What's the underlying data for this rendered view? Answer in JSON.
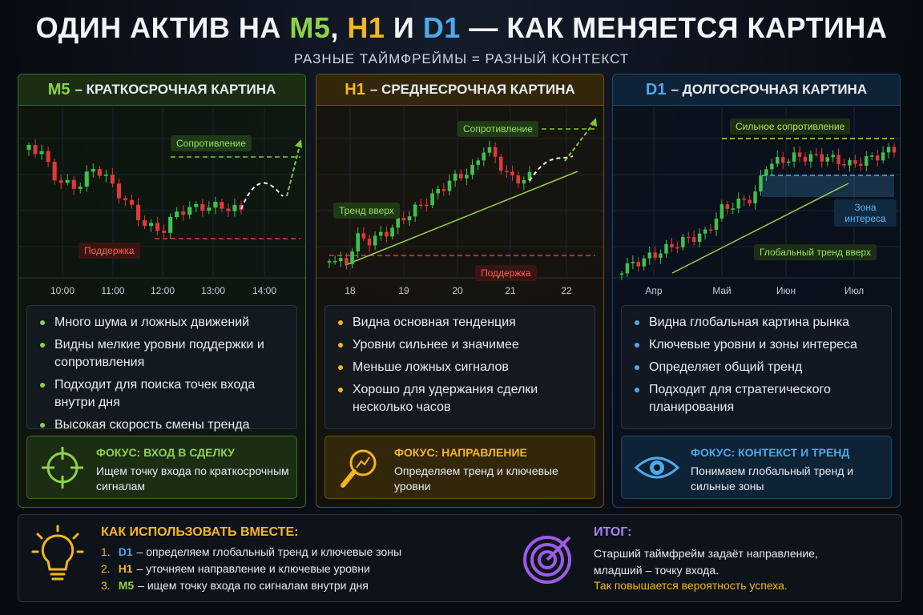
{
  "header": {
    "title_parts": [
      "ОДИН АКТИВ НА ",
      "M5",
      ", ",
      "H1",
      " И ",
      "D1",
      " — КАК МЕНЯЕТСЯ КАРТИНА"
    ],
    "subtitle": "РАЗНЫЕ ТАЙМФРЕЙМЫ = РАЗНЫЙ КОНТЕКСТ"
  },
  "panels": [
    {
      "tf": "M5",
      "heading": "– КРАТКОСРОЧНАЯ КАРТИНА",
      "annotations": [
        "Сопротивление",
        "Поддержка"
      ],
      "x_labels": [
        "10:00",
        "11:00",
        "12:00",
        "13:00",
        "14:00"
      ],
      "bullets": [
        "Много шума и ложных движений",
        "Видны мелкие уровни поддержки и сопротивления",
        "Подходит для поиска точек входа внутри дня",
        "Высокая скорость смены тренда"
      ],
      "focus_title": "ФОКУС: ВХОД В СДЕЛКУ",
      "focus_text": "Ищем точку входа по краткосрочным сигналам"
    },
    {
      "tf": "H1",
      "heading": "– СРЕДНЕСРОЧНАЯ КАРТИНА",
      "annotations": [
        "Сопротивление",
        "Тренд вверх",
        "Поддержка"
      ],
      "x_labels": [
        "18",
        "19",
        "20",
        "21",
        "22"
      ],
      "bullets": [
        "Видна основная тенденция",
        "Уровни сильнее и значимее",
        "Меньше ложных сигналов",
        "Хорошо для удержания сделки несколько часов"
      ],
      "focus_title": "ФОКУС: НАПРАВЛЕНИЕ",
      "focus_text": "Определяем тренд и ключевые уровни"
    },
    {
      "tf": "D1",
      "heading": "– ДОЛГОСРОЧНАЯ КАРТИНА",
      "annotations": [
        "Сильное сопротивление",
        "Зона интереса",
        "Глобальный тренд вверх"
      ],
      "x_labels": [
        "Апр",
        "Май",
        "Июн",
        "Июл"
      ],
      "bullets": [
        "Видна глобальная картина рынка",
        "Ключевые уровни и зоны интереса",
        "Определяет общий тренд",
        "Подходит для стратегического планирования"
      ],
      "focus_title": "ФОКУС: КОНТЕКСТ И ТРЕНД",
      "focus_text": "Понимаем глобальный тренд и сильные зоны"
    }
  ],
  "bottom": {
    "how_title": "КАК ИСПОЛЬЗОВАТЬ ВМЕСТЕ:",
    "steps": [
      {
        "num": "1.",
        "tf": "D1",
        "text": "– определяем глобальный тренд и ключевые зоны"
      },
      {
        "num": "2.",
        "tf": "H1",
        "text": "– уточняем направление и ключевые уровни"
      },
      {
        "num": "3.",
        "tf": "M5",
        "text": "– ищем точку входа по сигналам внутри дня"
      }
    ],
    "summary_title": "ИТОГ:",
    "summary_text": "Старший таймфрейм задаёт направление, младший – точку входа.",
    "summary_highlight": "Так повышается вероятность успеха."
  }
}
